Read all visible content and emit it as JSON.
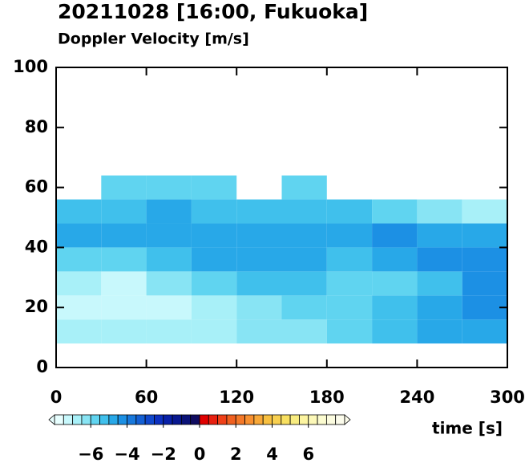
{
  "chart_data": {
    "type": "heatmap",
    "title": "20211028 [16:00, Fukuoka]",
    "subtitle": "Doppler Velocity [m/s]",
    "x_label": "time [s]",
    "xlim": [
      0,
      300
    ],
    "ylim": [
      0,
      100
    ],
    "xticks": [
      0,
      60,
      120,
      180,
      240,
      300
    ],
    "yticks": [
      0,
      20,
      40,
      60,
      80,
      100
    ],
    "x_bins": [
      0,
      30,
      60,
      90,
      120,
      150,
      180,
      210,
      240,
      270,
      300
    ],
    "y_bins": [
      8,
      16,
      24,
      32,
      40,
      48,
      56,
      64
    ],
    "values": [
      [
        -7,
        -7,
        -7,
        -7,
        -6.5,
        -6.5,
        -6,
        -5.5,
        -5,
        -5
      ],
      [
        -7.5,
        -7.5,
        -7.5,
        -7,
        -6.5,
        -6,
        -6,
        -5.5,
        -5,
        -4.5
      ],
      [
        -7,
        -7.5,
        -6.5,
        -6,
        -5.5,
        -5.5,
        -6,
        -6,
        -5.5,
        -4.5
      ],
      [
        -6,
        -6,
        -5.5,
        -5,
        -5,
        -5,
        -5.5,
        -5,
        -4.5,
        -4.5
      ],
      [
        -5,
        -5,
        -5,
        -5,
        -5,
        -5,
        -5,
        -4.5,
        -5,
        -5
      ],
      [
        -5.5,
        -5.5,
        -5,
        -5.5,
        -5.5,
        -5.5,
        -5.5,
        -6,
        -6.5,
        -7
      ],
      [
        null,
        -6,
        -6,
        -6,
        null,
        -6,
        null,
        null,
        null,
        null
      ]
    ],
    "clim": [
      -8,
      8
    ],
    "colorscale": [
      "#e8ffff",
      "#c8f8fc",
      "#a8f0f8",
      "#88e4f4",
      "#60d4f0",
      "#40c0ec",
      "#28a8e8",
      "#1c90e4",
      "#1878dc",
      "#1460d4",
      "#1048cc",
      "#0c30c0",
      "#0820a8",
      "#081890",
      "#0a1278",
      "#100c60",
      "#e00000",
      "#e82010",
      "#f04018",
      "#f06020",
      "#f47828",
      "#f89030",
      "#f8a838",
      "#f8c040",
      "#f8d050",
      "#f8e060",
      "#f8ec80",
      "#fcf4a0",
      "#fcf8b8",
      "#fcfcd0",
      "#fcfce0",
      "#fcfcec"
    ],
    "colorbar_ticks": [
      {
        "value": -6,
        "label": "−6"
      },
      {
        "value": -4,
        "label": "−4"
      },
      {
        "value": -2,
        "label": "−2"
      },
      0,
      2,
      4,
      6
    ]
  }
}
